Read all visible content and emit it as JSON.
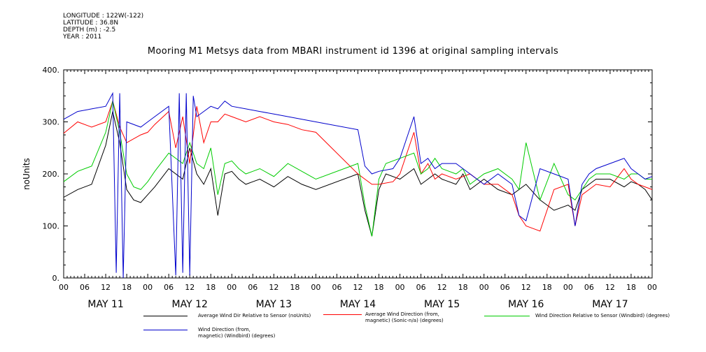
{
  "meta": {
    "longitude": "LONGITUDE : 122W(-122)",
    "latitude": "LATITUDE : 36.8N",
    "depth": "DEPTH (m) : -2.5",
    "year": "YEAR : 2011"
  },
  "chart_data": {
    "type": "line",
    "title": "Mooring M1 Metsys data from MBARI instrument id 1396 at original sampling intervals",
    "ylabel": "noUnits",
    "xlabel": "",
    "ylim": [
      0,
      400
    ],
    "yticks": [
      "0.",
      "100.",
      "200.",
      "300.",
      "400."
    ],
    "xlim_hours": [
      0,
      168
    ],
    "xticks_hours": [
      "00",
      "06",
      "12",
      "18",
      "00",
      "06",
      "12",
      "18",
      "00",
      "06",
      "12",
      "18",
      "00",
      "06",
      "12",
      "18",
      "00",
      "06",
      "12",
      "18",
      "00",
      "06",
      "12",
      "18",
      "00",
      "06",
      "12",
      "18",
      "00"
    ],
    "day_labels": [
      "MAY 11",
      "MAY 12",
      "MAY 13",
      "MAY 14",
      "MAY 15",
      "MAY 16",
      "MAY 17"
    ],
    "series": [
      {
        "name": "Average Wind Dir Relative to Sensor (noUnits)",
        "color": "#000000",
        "x": [
          0,
          4,
          8,
          12,
          14,
          16,
          18,
          20,
          22,
          24,
          26,
          30,
          34,
          36,
          38,
          40,
          42,
          44,
          46,
          48,
          50,
          52,
          54,
          56,
          60,
          64,
          68,
          72,
          84,
          86,
          88,
          90,
          92,
          96,
          100,
          102,
          104,
          106,
          108,
          112,
          114,
          116,
          120,
          124,
          128,
          132,
          136,
          140,
          144,
          146,
          148,
          150,
          152,
          156,
          160,
          162,
          164,
          166,
          168
        ],
        "y": [
          155,
          170,
          180,
          255,
          320,
          260,
          170,
          150,
          145,
          160,
          175,
          210,
          190,
          250,
          200,
          180,
          210,
          120,
          200,
          205,
          190,
          180,
          185,
          190,
          175,
          195,
          180,
          170,
          200,
          130,
          80,
          170,
          200,
          190,
          210,
          180,
          190,
          200,
          190,
          180,
          200,
          170,
          190,
          170,
          160,
          180,
          150,
          130,
          140,
          130,
          170,
          180,
          190,
          190,
          175,
          185,
          180,
          170,
          150
        ]
      },
      {
        "name": "Average Wind Direction (from, magnetic) (Sonic-n/a) (degrees)",
        "color": "#ff0000",
        "x": [
          0,
          4,
          8,
          12,
          14,
          16,
          18,
          22,
          24,
          26,
          30,
          32,
          34,
          36,
          38,
          40,
          42,
          44,
          46,
          48,
          52,
          56,
          60,
          64,
          68,
          72,
          84,
          86,
          88,
          90,
          94,
          96,
          100,
          102,
          104,
          106,
          108,
          112,
          116,
          120,
          124,
          128,
          130,
          132,
          136,
          140,
          144,
          146,
          148,
          150,
          152,
          156,
          160,
          162,
          164,
          166,
          168
        ],
        "y": [
          278,
          300,
          290,
          300,
          340,
          290,
          260,
          275,
          280,
          295,
          320,
          250,
          310,
          220,
          330,
          260,
          300,
          300,
          315,
          310,
          300,
          310,
          300,
          295,
          285,
          280,
          200,
          190,
          180,
          180,
          185,
          200,
          280,
          200,
          220,
          190,
          200,
          190,
          200,
          180,
          180,
          160,
          120,
          100,
          90,
          170,
          180,
          100,
          160,
          170,
          180,
          175,
          210,
          190,
          180,
          175,
          170
        ]
      },
      {
        "name": "Wind Direction Relative to Sensor (Windbird) (degrees)",
        "color": "#00cc00",
        "x": [
          0,
          4,
          8,
          12,
          14,
          16,
          18,
          20,
          22,
          24,
          26,
          30,
          34,
          36,
          38,
          40,
          42,
          44,
          46,
          48,
          50,
          52,
          54,
          56,
          60,
          64,
          68,
          72,
          84,
          86,
          88,
          90,
          92,
          96,
          100,
          102,
          104,
          106,
          108,
          112,
          114,
          116,
          120,
          124,
          128,
          130,
          132,
          136,
          140,
          144,
          146,
          148,
          150,
          152,
          156,
          160,
          162,
          164,
          166,
          168
        ],
        "y": [
          185,
          205,
          215,
          280,
          340,
          280,
          200,
          175,
          170,
          185,
          205,
          240,
          220,
          260,
          220,
          210,
          250,
          160,
          220,
          225,
          210,
          200,
          205,
          210,
          195,
          220,
          205,
          190,
          220,
          140,
          80,
          190,
          220,
          230,
          240,
          200,
          210,
          230,
          210,
          200,
          210,
          180,
          200,
          210,
          190,
          170,
          260,
          150,
          220,
          160,
          150,
          170,
          190,
          200,
          200,
          190,
          200,
          200,
          190,
          190
        ]
      },
      {
        "name": "Wind Direction (from, magnetic) (Windbird) (degrees)",
        "color": "#0000cc",
        "x": [
          0,
          4,
          8,
          12,
          14,
          15,
          16,
          17,
          18,
          22,
          24,
          26,
          30,
          32,
          33,
          34,
          35,
          36,
          37,
          38,
          40,
          42,
          44,
          46,
          48,
          52,
          56,
          60,
          64,
          68,
          72,
          84,
          86,
          88,
          90,
          94,
          96,
          100,
          102,
          104,
          106,
          108,
          112,
          116,
          120,
          124,
          128,
          130,
          132,
          136,
          140,
          144,
          146,
          148,
          150,
          152,
          156,
          160,
          162,
          164,
          166,
          168
        ],
        "y": [
          305,
          320,
          325,
          330,
          355,
          10,
          355,
          0,
          300,
          290,
          300,
          310,
          330,
          5,
          355,
          10,
          355,
          5,
          350,
          310,
          320,
          330,
          325,
          340,
          330,
          325,
          320,
          315,
          310,
          305,
          300,
          285,
          215,
          200,
          205,
          210,
          230,
          310,
          220,
          230,
          210,
          220,
          220,
          200,
          180,
          200,
          180,
          120,
          110,
          210,
          200,
          190,
          100,
          180,
          200,
          210,
          220,
          230,
          210,
          200,
          190,
          195
        ]
      }
    ],
    "legend": [
      {
        "line1": "Average Wind Dir Relative to Sensor (noUnits)",
        "line2": ""
      },
      {
        "line1": "Average Wind Direction (from,",
        "line2": "magnetic) (Sonic-n/a) (degrees)"
      },
      {
        "line1": "Wind Direction Relative to Sensor (Windbird) (degrees)",
        "line2": ""
      },
      {
        "line1": "Wind Direction (from,",
        "line2": "magnetic) (Windbird) (degrees)"
      }
    ]
  }
}
